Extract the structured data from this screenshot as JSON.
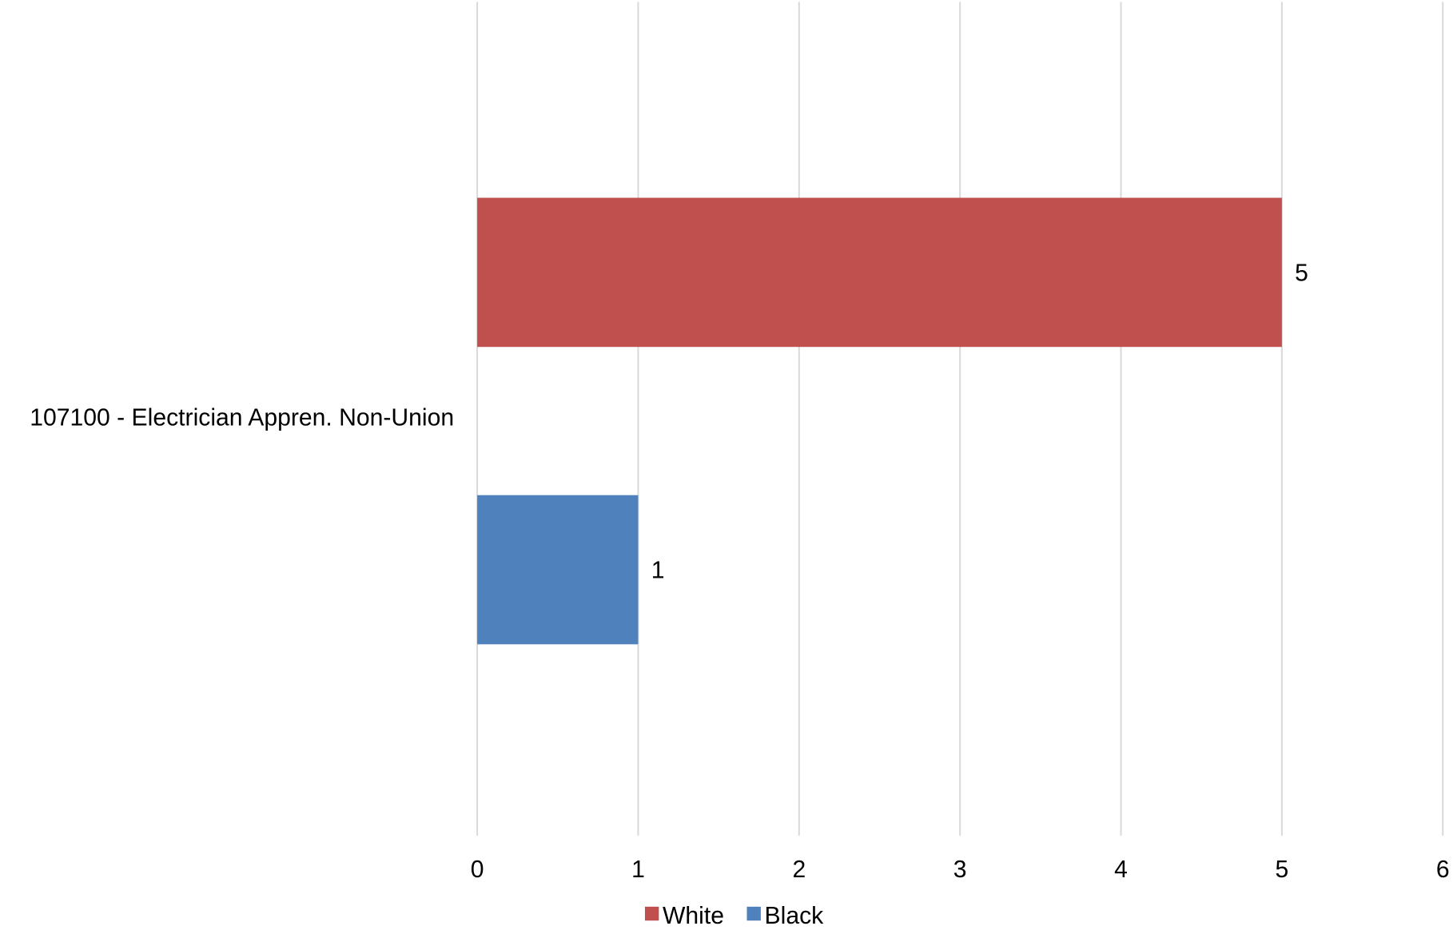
{
  "chart_data": {
    "type": "bar",
    "orientation": "horizontal",
    "categories": [
      "107100 - Electrician Appren. Non-Union"
    ],
    "series": [
      {
        "name": "White",
        "values": [
          5
        ],
        "color": "#C0504D"
      },
      {
        "name": "Black",
        "values": [
          1
        ],
        "color": "#4F81BD"
      }
    ],
    "xlim": [
      0,
      6
    ],
    "xticks": [
      "0",
      "1",
      "2",
      "3",
      "4",
      "5",
      "6"
    ],
    "data_labels": [
      "5",
      "1"
    ],
    "grid": true,
    "legend_position": "bottom",
    "title": "",
    "xlabel": "",
    "ylabel": ""
  }
}
